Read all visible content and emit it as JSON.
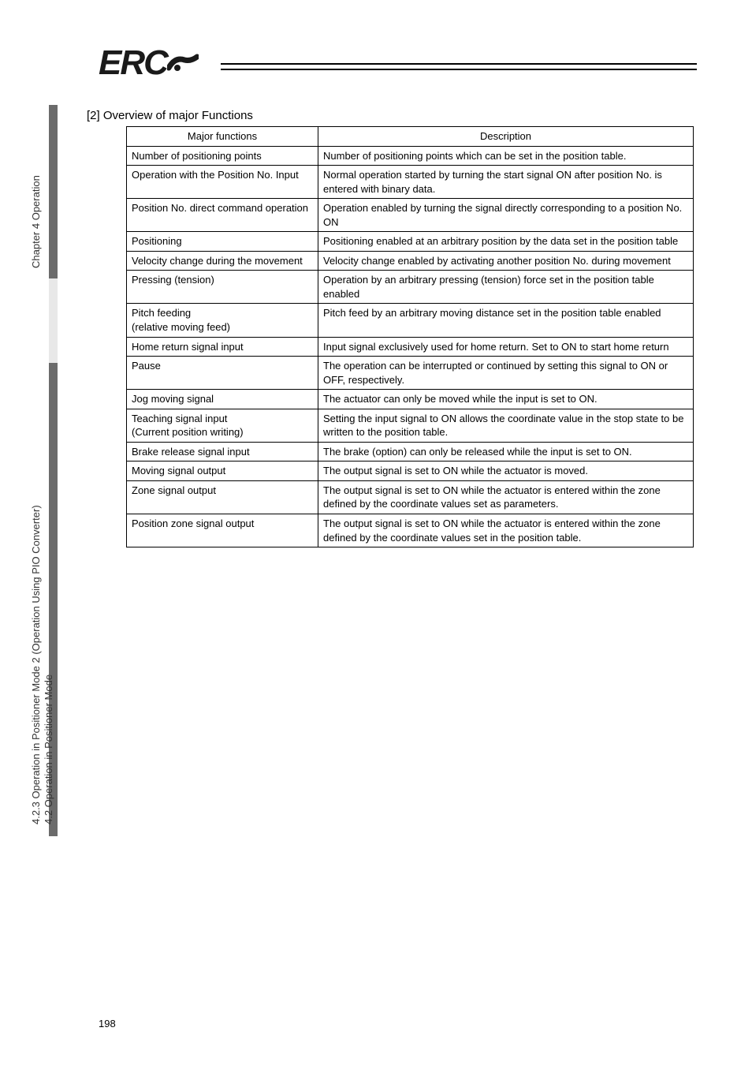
{
  "logo": {
    "text": "ERC",
    "number": "3"
  },
  "sidebar": {
    "top_label": "Chapter 4 Operation",
    "bottom_label_line1": "4.2 Operation in Positioner Mode",
    "bottom_label_line2": "4.2.3 Operation in Positioner Mode 2 (Operation Using PIO Converter)"
  },
  "section": {
    "title": "[2]  Overview of major Functions"
  },
  "table": {
    "headers": {
      "left": "Major functions",
      "right": "Description"
    },
    "rows": [
      {
        "left": "Number of positioning points",
        "right": "Number of positioning points which can be set in the position table."
      },
      {
        "left": "Operation with the Position No. Input",
        "right": "Normal operation started by turning the start signal ON after position No. is entered with binary data."
      },
      {
        "left": "Position No. direct command operation",
        "right": "Operation enabled by turning the signal directly corresponding to a position No. ON"
      },
      {
        "left": "Positioning",
        "right": "Positioning enabled at an arbitrary position by the data set in the position table"
      },
      {
        "left": "Velocity change during the movement",
        "right": "Velocity change enabled by activating another position No. during movement"
      },
      {
        "left": "Pressing (tension)",
        "right": "Operation by an arbitrary pressing (tension) force set in the position table enabled"
      },
      {
        "left": "Pitch feeding\n(relative moving feed)",
        "right": "Pitch feed by an arbitrary moving distance set in the position table enabled"
      },
      {
        "left": "Home return signal input",
        "right": "Input signal exclusively used for home return. Set to ON to start home return"
      },
      {
        "left": "Pause",
        "right": "The operation can be interrupted or continued by setting this signal to ON or OFF, respectively."
      },
      {
        "left": "Jog moving signal",
        "right": "The actuator can only be moved while the input is set to ON."
      },
      {
        "left": "Teaching signal input\n(Current position writing)",
        "right": "Setting the input signal to ON allows the coordinate value in the stop state to be written to the position table."
      },
      {
        "left": "Brake release signal input",
        "right": "The brake (option) can only be released while the input is set to ON."
      },
      {
        "left": "Moving signal output",
        "right": "The output signal is set to ON while the actuator is moved."
      },
      {
        "left": "Zone signal output",
        "right": "The output signal is set to ON while the actuator is entered within the zone defined by the coordinate values set as parameters."
      },
      {
        "left": "Position zone signal output",
        "right": "The output signal is set to ON while the actuator is entered within the zone defined by the coordinate values set in the position table."
      }
    ]
  },
  "page_number": "198"
}
